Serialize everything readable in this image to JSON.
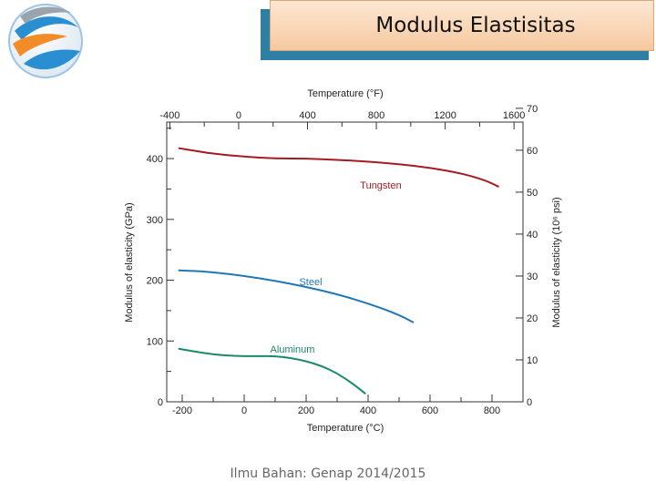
{
  "header": {
    "title": "Modulus Elastisitas",
    "logo_icon": "swirl-globe-logo-icon"
  },
  "footer": {
    "text": "Ilmu Bahan: Genap 2014/2015"
  },
  "colors": {
    "title_bg": "#f9d6b6",
    "title_shadow": "#2e7fa3",
    "tungsten": "#a61b22",
    "steel": "#1f78b4",
    "aluminum": "#1a8a6a"
  },
  "chart_data": {
    "type": "line",
    "xlabel": "Temperature (°C)",
    "ylabel": "Modulus of elasticity (GPa)",
    "x2label": "Temperature (°F)",
    "y2label": "Modulus of elasticity (10⁶ psi)",
    "xlim": [
      -250,
      900
    ],
    "ylim": [
      0,
      460
    ],
    "x_ticks": [
      -200,
      0,
      200,
      400,
      600,
      800
    ],
    "y_ticks": [
      0,
      100,
      200,
      300,
      400
    ],
    "x2_ticks": [
      -400,
      0,
      400,
      800,
      1200,
      1600
    ],
    "y2_ticks": [
      0,
      10,
      20,
      30,
      40,
      50,
      60,
      70
    ],
    "series": [
      {
        "name": "Tungsten",
        "color": "#a61b22",
        "x": [
          -210,
          -150,
          -100,
          0,
          100,
          200,
          300,
          400,
          500,
          600,
          700,
          780,
          820
        ],
        "y": [
          417,
          412,
          408,
          403,
          400,
          400,
          398,
          395,
          391,
          385,
          376,
          364,
          354
        ]
      },
      {
        "name": "Steel",
        "color": "#1f78b4",
        "x": [
          -210,
          -150,
          -100,
          0,
          100,
          200,
          300,
          400,
          500,
          545
        ],
        "y": [
          216,
          215,
          213,
          207,
          199,
          189,
          177,
          162,
          143,
          131
        ]
      },
      {
        "name": "Aluminum",
        "color": "#1a8a6a",
        "x": [
          -210,
          -150,
          -100,
          -50,
          0,
          50,
          100,
          150,
          200,
          250,
          300,
          350,
          390
        ],
        "y": [
          87,
          82,
          78,
          76,
          75,
          75,
          75,
          72,
          67,
          59,
          47,
          30,
          14
        ]
      }
    ]
  }
}
